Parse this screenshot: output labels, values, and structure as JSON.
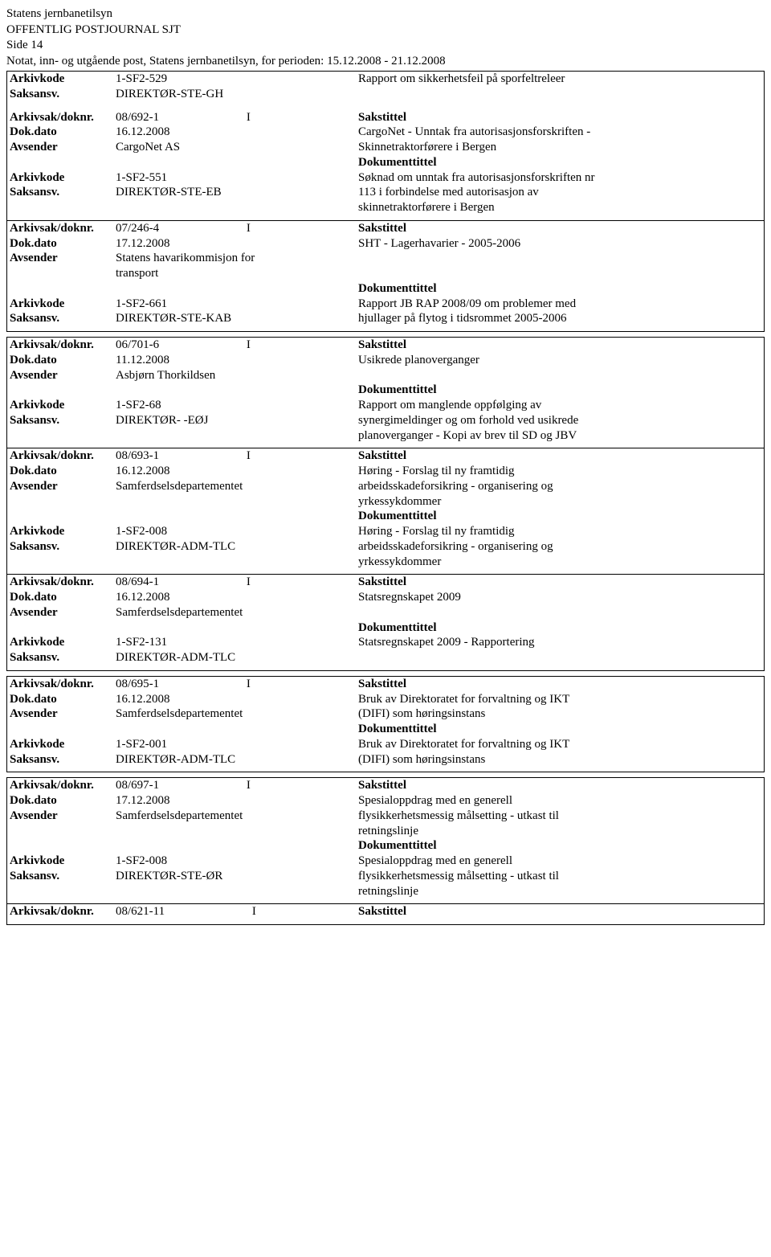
{
  "header": {
    "org": "Statens jernbanetilsyn",
    "title": "OFFENTLIG POSTJOURNAL SJT",
    "page": "Side 14",
    "period": "Notat, inn- og utgående post, Statens jernbanetilsyn, for perioden: 15.12.2008 - 21.12.2008"
  },
  "labels": {
    "arkivkode": "Arkivkode",
    "saksansv": "Saksansv.",
    "arkivsak": "Arkivsak/doknr.",
    "dokdato": "Dok.dato",
    "avsender": "Avsender",
    "sakstittel": "Sakstittel",
    "dokumenttittel": "Dokumenttittel"
  },
  "boxes": [
    {
      "style": "first",
      "arkivkode": "1-SF2-529",
      "saksansv": "DIREKTØR-STE-GH",
      "rapport": "Rapport om sikkerhetsfeil på sporfeltreleer",
      "entries": [
        {
          "arkivsak": "08/692-1",
          "io": "I",
          "dokdato": "16.12.2008",
          "avsender": "CargoNet AS",
          "sakstittel_lines": [
            "CargoNet - Unntak fra autorisasjonsforskriften -",
            "Skinnetraktorførere i Bergen"
          ],
          "arkivkode": "1-SF2-551",
          "saksansv": "DIREKTØR-STE-EB",
          "doktittel_lines": [
            "Søknad om unntak fra autorisasjonsforskriften nr",
            "113 i forbindelse med autorisasjon av",
            "skinnetraktorførere i Bergen"
          ]
        },
        {
          "arkivsak": "07/246-4",
          "io": "I",
          "dokdato": "17.12.2008",
          "avsender_lines": [
            "Statens havarikommisjon for",
            "transport"
          ],
          "sakstittel_lines": [
            "SHT - Lagerhavarier - 2005-2006"
          ],
          "arkivkode": "1-SF2-661",
          "saksansv": "DIREKTØR-STE-KAB",
          "doktittel_lines": [
            "Rapport JB RAP 2008/09 om problemer med",
            "hjullager på flytog i tidsrommet 2005-2006"
          ]
        }
      ]
    },
    {
      "style": "normal",
      "entries": [
        {
          "arkivsak": "06/701-6",
          "io": "I",
          "dokdato": "11.12.2008",
          "avsender": "Asbjørn Thorkildsen",
          "sakstittel_lines": [
            "Usikrede planoverganger"
          ],
          "arkivkode": "1-SF2-68",
          "saksansv": "DIREKTØR- -EØJ",
          "doktittel_lines": [
            "Rapport om manglende oppfølging av",
            "synergimeldinger og om forhold ved usikrede",
            "planoverganger - Kopi av brev til SD og JBV"
          ]
        },
        {
          "arkivsak": "08/693-1",
          "io": "I",
          "dokdato": "16.12.2008",
          "avsender": "Samferdselsdepartementet",
          "sakstittel_lines": [
            "Høring - Forslag til ny framtidig",
            "arbeidsskadeforsikring - organisering og",
            "yrkessykdommer"
          ],
          "arkivkode": "1-SF2-008",
          "saksansv": "DIREKTØR-ADM-TLC",
          "doktittel_lines": [
            "Høring - Forslag til ny framtidig",
            "arbeidsskadeforsikring - organisering og",
            "yrkessykdommer"
          ]
        },
        {
          "arkivsak": "08/694-1",
          "io": "I",
          "dokdato": "16.12.2008",
          "avsender": "Samferdselsdepartementet",
          "sakstittel_lines": [
            "Statsregnskapet 2009"
          ],
          "arkivkode": "1-SF2-131",
          "saksansv": "DIREKTØR-ADM-TLC",
          "doktittel_lines": [
            "Statsregnskapet 2009 - Rapportering"
          ]
        }
      ]
    },
    {
      "style": "normal",
      "entries": [
        {
          "arkivsak": "08/695-1",
          "io": "I",
          "dokdato": "16.12.2008",
          "avsender": "Samferdselsdepartementet",
          "sakstittel_lines": [
            "Bruk av Direktoratet for forvaltning og IKT",
            "(DIFI) som høringsinstans"
          ],
          "arkivkode": "1-SF2-001",
          "saksansv": "DIREKTØR-ADM-TLC",
          "doktittel_lines": [
            "Bruk av Direktoratet for forvaltning og IKT",
            "(DIFI) som høringsinstans"
          ]
        }
      ]
    },
    {
      "style": "normal",
      "entries": [
        {
          "arkivsak": "08/697-1",
          "io": "I",
          "dokdato": "17.12.2008",
          "avsender": "Samferdselsdepartementet",
          "sakstittel_lines": [
            "Spesialoppdrag med en generell",
            "flysikkerhetsmessig målsetting - utkast til",
            "retningslinje"
          ],
          "arkivkode": "1-SF2-008",
          "saksansv": "DIREKTØR-STE-ØR",
          "doktittel_lines": [
            "Spesialoppdrag med en generell",
            "flysikkerhetsmessig målsetting - utkast til",
            "retningslinje"
          ]
        },
        {
          "arkivsak": "08/621-11",
          "io": "I",
          "tail": true
        }
      ]
    }
  ]
}
